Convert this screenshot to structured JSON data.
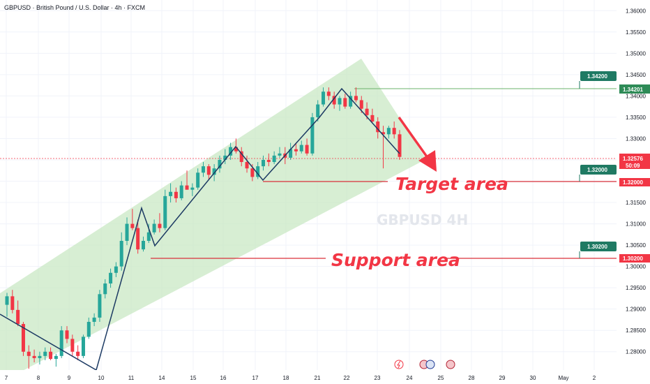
{
  "header": {
    "title": "GBPUSD · British Pound / U.S. Dollar · 4h · FXCM"
  },
  "watermark": "GBPUSD 4H",
  "annotations": {
    "target": "Target area",
    "support": "Support area"
  },
  "price_label": {
    "value": "1.32576",
    "countdown": "50:09"
  },
  "colors": {
    "up": "#26a69a",
    "down": "#f23645",
    "channel": "#c9e8c4",
    "level_line": "#d9313b",
    "target_line": "#6bb36b",
    "tag": "#1f7a63"
  },
  "chart_data": {
    "type": "candlestick",
    "title": "GBPUSD · British Pound / U.S. Dollar · 4h · FXCM",
    "ylim": [
      1.2757,
      1.3625
    ],
    "y_ticks": [
      "1.36000",
      "1.35500",
      "1.35000",
      "1.34500",
      "1.34000",
      "1.33500",
      "1.33000",
      "1.32500",
      "1.32000",
      "1.31500",
      "1.31000",
      "1.30500",
      "1.30000",
      "1.29500",
      "1.29000",
      "1.28500",
      "1.28000"
    ],
    "x_ticks": [
      "7",
      "8",
      "9",
      "10",
      "11",
      "14",
      "15",
      "16",
      "17",
      "18",
      "21",
      "22",
      "23",
      "24",
      "25",
      "28",
      "29",
      "30",
      "May",
      "2"
    ],
    "levels": [
      {
        "price": 1.342,
        "label": "1.34200",
        "axis_label": "1.34201",
        "color": "green"
      },
      {
        "price": 1.32,
        "label": "1.32000",
        "axis_label": "1.32000",
        "color": "red"
      },
      {
        "price": 1.302,
        "label": "1.30200",
        "axis_label": "1.30200",
        "color": "red"
      }
    ],
    "candles": [
      [
        1.291,
        1.2938,
        1.2882,
        1.293
      ],
      [
        1.293,
        1.2945,
        1.289,
        1.2898
      ],
      [
        1.2898,
        1.292,
        1.286,
        1.2865
      ],
      [
        1.2865,
        1.287,
        1.279,
        1.28
      ],
      [
        1.28,
        1.2815,
        1.276,
        1.279
      ],
      [
        1.279,
        1.2805,
        1.2775,
        1.2785
      ],
      [
        1.2785,
        1.28,
        1.277,
        1.279
      ],
      [
        1.279,
        1.281,
        1.278,
        1.28
      ],
      [
        1.28,
        1.281,
        1.278,
        1.2783
      ],
      [
        1.2783,
        1.2795,
        1.2765,
        1.279
      ],
      [
        1.279,
        1.286,
        1.2785,
        1.285
      ],
      [
        1.285,
        1.286,
        1.282,
        1.283
      ],
      [
        1.283,
        1.284,
        1.279,
        1.28
      ],
      [
        1.28,
        1.2815,
        1.278,
        1.279
      ],
      [
        1.279,
        1.284,
        1.2785,
        1.2835
      ],
      [
        1.2835,
        1.288,
        1.283,
        1.287
      ],
      [
        1.287,
        1.289,
        1.286,
        1.288
      ],
      [
        1.288,
        1.2945,
        1.287,
        1.2935
      ],
      [
        1.2935,
        1.297,
        1.2925,
        1.296
      ],
      [
        1.296,
        1.2995,
        1.295,
        1.2985
      ],
      [
        1.2985,
        1.301,
        1.2975,
        1.3
      ],
      [
        1.3,
        1.308,
        1.299,
        1.306
      ],
      [
        1.306,
        1.3115,
        1.305,
        1.31
      ],
      [
        1.31,
        1.3135,
        1.3085,
        1.309
      ],
      [
        1.309,
        1.311,
        1.303,
        1.304
      ],
      [
        1.304,
        1.307,
        1.3035,
        1.306
      ],
      [
        1.306,
        1.31,
        1.3055,
        1.308
      ],
      [
        1.308,
        1.311,
        1.3075,
        1.31
      ],
      [
        1.31,
        1.3125,
        1.308,
        1.309
      ],
      [
        1.309,
        1.318,
        1.3085,
        1.3165
      ],
      [
        1.3165,
        1.3195,
        1.315,
        1.3175
      ],
      [
        1.3175,
        1.3185,
        1.315,
        1.316
      ],
      [
        1.316,
        1.32,
        1.3155,
        1.319
      ],
      [
        1.319,
        1.3225,
        1.318,
        1.318
      ],
      [
        1.318,
        1.3195,
        1.3165,
        1.3185
      ],
      [
        1.3185,
        1.323,
        1.318,
        1.322
      ],
      [
        1.322,
        1.3245,
        1.321,
        1.3235
      ],
      [
        1.3235,
        1.324,
        1.3205,
        1.3215
      ],
      [
        1.3215,
        1.324,
        1.32,
        1.323
      ],
      [
        1.323,
        1.326,
        1.322,
        1.325
      ],
      [
        1.325,
        1.3275,
        1.324,
        1.326
      ],
      [
        1.326,
        1.329,
        1.325,
        1.328
      ],
      [
        1.328,
        1.33,
        1.3265,
        1.327
      ],
      [
        1.327,
        1.328,
        1.3235,
        1.3245
      ],
      [
        1.3245,
        1.326,
        1.322,
        1.323
      ],
      [
        1.323,
        1.324,
        1.32,
        1.321
      ],
      [
        1.321,
        1.3245,
        1.3205,
        1.3235
      ],
      [
        1.3235,
        1.326,
        1.3225,
        1.325
      ],
      [
        1.325,
        1.3265,
        1.3235,
        1.3245
      ],
      [
        1.3245,
        1.327,
        1.324,
        1.326
      ],
      [
        1.326,
        1.328,
        1.3255,
        1.3265
      ],
      [
        1.3265,
        1.328,
        1.324,
        1.3255
      ],
      [
        1.3255,
        1.329,
        1.325,
        1.3275
      ],
      [
        1.3275,
        1.329,
        1.326,
        1.327
      ],
      [
        1.327,
        1.3295,
        1.3265,
        1.3285
      ],
      [
        1.3285,
        1.33,
        1.326,
        1.3265
      ],
      [
        1.3265,
        1.336,
        1.326,
        1.335
      ],
      [
        1.335,
        1.339,
        1.334,
        1.338
      ],
      [
        1.338,
        1.342,
        1.3375,
        1.341
      ],
      [
        1.341,
        1.342,
        1.339,
        1.34
      ],
      [
        1.34,
        1.341,
        1.337,
        1.338
      ],
      [
        1.338,
        1.34,
        1.3365,
        1.3395
      ],
      [
        1.3395,
        1.3405,
        1.337,
        1.3375
      ],
      [
        1.3375,
        1.341,
        1.337,
        1.34
      ],
      [
        1.34,
        1.342,
        1.3385,
        1.339
      ],
      [
        1.339,
        1.34,
        1.336,
        1.337
      ],
      [
        1.337,
        1.3385,
        1.3345,
        1.3355
      ],
      [
        1.3355,
        1.337,
        1.3335,
        1.334
      ],
      [
        1.334,
        1.335,
        1.33,
        1.3315
      ],
      [
        1.3315,
        1.333,
        1.323,
        1.331
      ],
      [
        1.331,
        1.333,
        1.33,
        1.3325
      ],
      [
        1.3325,
        1.334,
        1.33,
        1.331
      ],
      [
        1.331,
        1.332,
        1.325,
        1.3257
      ]
    ]
  }
}
